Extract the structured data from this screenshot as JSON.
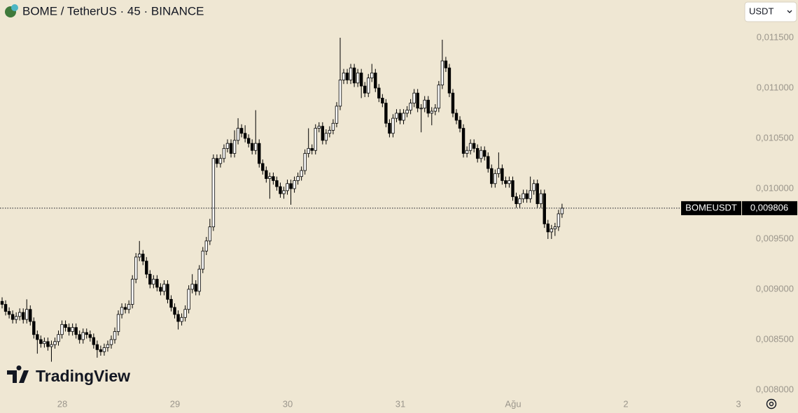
{
  "chart_data": {
    "type": "candlestick",
    "title": "BOME / TetherUS · 45 · BINANCE",
    "currency": "USDT",
    "symbol": "BOMEUSDT",
    "last_price": {
      "value": 0.009806,
      "label": "0,009806"
    },
    "watermark": "TradingView",
    "up_color": "#ffffff",
    "down_color": "#000000",
    "grid": false,
    "xlim": [
      -0.6,
      210.1
    ],
    "xticks": [
      {
        "value": 17.1,
        "label": "28"
      },
      {
        "value": 49.1,
        "label": "29"
      },
      {
        "value": 81.1,
        "label": "30"
      },
      {
        "value": 113.1,
        "label": "31"
      },
      {
        "value": 145.1,
        "label": "Ağu"
      },
      {
        "value": 177.1,
        "label": "2"
      },
      {
        "value": 209.1,
        "label": "3"
      }
    ],
    "ylim": [
      0.00793,
      0.011875
    ],
    "yticks": [
      {
        "value": 0.0115,
        "label": "0,011500"
      },
      {
        "value": 0.011,
        "label": "0,011000"
      },
      {
        "value": 0.0105,
        "label": "0,010500"
      },
      {
        "value": 0.01,
        "label": "0,010000"
      },
      {
        "value": 0.0095,
        "label": "0,009500"
      },
      {
        "value": 0.009,
        "label": "0,009000"
      },
      {
        "value": 0.0085,
        "label": "0,008500"
      },
      {
        "value": 0.008,
        "label": "0,008000"
      }
    ],
    "open": [
      0.00888,
      0.00885,
      0.00878,
      0.00875,
      0.0087,
      0.00873,
      0.00877,
      0.0087,
      0.0088,
      0.00868,
      0.00855,
      0.0085,
      0.00846,
      0.00848,
      0.00843,
      0.00845,
      0.00848,
      0.00855,
      0.00865,
      0.00862,
      0.00858,
      0.00862,
      0.00855,
      0.0085,
      0.00857,
      0.00855,
      0.00852,
      0.00845,
      0.0084,
      0.00838,
      0.00842,
      0.00845,
      0.0085,
      0.00858,
      0.00875,
      0.00882,
      0.0088,
      0.00885,
      0.0091,
      0.00932,
      0.00935,
      0.00928,
      0.00915,
      0.00905,
      0.0091,
      0.00902,
      0.00898,
      0.00905,
      0.0089,
      0.00882,
      0.00875,
      0.00868,
      0.00872,
      0.0088,
      0.009,
      0.00905,
      0.00898,
      0.0092,
      0.00938,
      0.00948,
      0.00962,
      0.0103,
      0.01025,
      0.0103,
      0.0104,
      0.01045,
      0.01035,
      0.01048,
      0.0106,
      0.01055,
      0.0105,
      0.01045,
      0.01038,
      0.01045,
      0.01025,
      0.01018,
      0.0101,
      0.01012,
      0.01008,
      0.01002,
      0.00995,
      0.00998,
      0.01005,
      0.01,
      0.01008,
      0.01012,
      0.01018,
      0.01035,
      0.0104,
      0.01038,
      0.0106,
      0.01062,
      0.01048,
      0.01055,
      0.01058,
      0.01065,
      0.01082,
      0.01108,
      0.01115,
      0.01108,
      0.0112,
      0.01105,
      0.01115,
      0.01102,
      0.01095,
      0.0111,
      0.01115,
      0.011,
      0.0109,
      0.01085,
      0.01065,
      0.01055,
      0.0107,
      0.01075,
      0.01068,
      0.01075,
      0.01078,
      0.01085,
      0.01095,
      0.0108,
      0.0108,
      0.01088,
      0.01075,
      0.01077,
      0.0108,
      0.01103,
      0.01127,
      0.0112,
      0.01095,
      0.01075,
      0.01068,
      0.0106,
      0.01035,
      0.01038,
      0.01045,
      0.0104,
      0.0103,
      0.01038,
      0.01032,
      0.0102,
      0.01005,
      0.01015,
      0.0102,
      0.01008,
      0.01005,
      0.01008,
      0.00992,
      0.00985,
      0.0099,
      0.00995,
      0.0099,
      0.00998,
      0.01005,
      0.00985,
      0.00995,
      0.00965,
      0.00957,
      0.0096,
      0.00962,
      0.00975
    ],
    "high": [
      0.00892,
      0.00889,
      0.00882,
      0.00879,
      0.00877,
      0.00881,
      0.00881,
      0.0089,
      0.00884,
      0.00872,
      0.00859,
      0.00854,
      0.00852,
      0.00852,
      0.00849,
      0.00852,
      0.00859,
      0.00869,
      0.00869,
      0.00866,
      0.00866,
      0.00866,
      0.00859,
      0.00861,
      0.00861,
      0.00859,
      0.00856,
      0.00849,
      0.00844,
      0.00846,
      0.00849,
      0.00854,
      0.00862,
      0.00879,
      0.00886,
      0.00886,
      0.00889,
      0.00914,
      0.00936,
      0.00948,
      0.00939,
      0.00932,
      0.00919,
      0.00914,
      0.00914,
      0.00906,
      0.00909,
      0.00909,
      0.00894,
      0.00886,
      0.00879,
      0.00876,
      0.00884,
      0.00904,
      0.00915,
      0.00909,
      0.00924,
      0.00942,
      0.00952,
      0.0097,
      0.01034,
      0.01034,
      0.01034,
      0.01044,
      0.01049,
      0.01049,
      0.01058,
      0.0107,
      0.01064,
      0.01063,
      0.01054,
      0.01049,
      0.01078,
      0.01049,
      0.01029,
      0.01022,
      0.01016,
      0.01016,
      0.01012,
      0.01006,
      0.01002,
      0.01009,
      0.01009,
      0.01012,
      0.01016,
      0.01022,
      0.01039,
      0.0106,
      0.01044,
      0.01064,
      0.01066,
      0.01066,
      0.01059,
      0.01062,
      0.01069,
      0.01086,
      0.0115,
      0.01119,
      0.01119,
      0.01124,
      0.01124,
      0.01119,
      0.01119,
      0.01106,
      0.01114,
      0.01124,
      0.01119,
      0.01104,
      0.01094,
      0.01089,
      0.01069,
      0.01074,
      0.01079,
      0.01079,
      0.01079,
      0.01082,
      0.01089,
      0.01099,
      0.01099,
      0.01084,
      0.01092,
      0.01092,
      0.01081,
      0.01084,
      0.01107,
      0.01148,
      0.01131,
      0.01124,
      0.01099,
      0.01079,
      0.01072,
      0.01064,
      0.01042,
      0.01049,
      0.01049,
      0.01044,
      0.01042,
      0.01042,
      0.01036,
      0.01024,
      0.01019,
      0.01036,
      0.01024,
      0.01012,
      0.01012,
      0.01012,
      0.00996,
      0.00994,
      0.00999,
      0.00999,
      0.01012,
      0.01009,
      0.01009,
      0.00999,
      0.00999,
      0.00969,
      0.00964,
      0.00966,
      0.00979,
      0.00985
    ],
    "low": [
      0.00881,
      0.00874,
      0.00871,
      0.00866,
      0.00866,
      0.00869,
      0.00866,
      0.00866,
      0.00864,
      0.00851,
      0.00836,
      0.00842,
      0.00842,
      0.00839,
      0.00828,
      0.00841,
      0.00844,
      0.00851,
      0.00858,
      0.00854,
      0.00854,
      0.00851,
      0.00846,
      0.00846,
      0.00851,
      0.00848,
      0.00841,
      0.00832,
      0.00834,
      0.00834,
      0.00838,
      0.00841,
      0.00846,
      0.00854,
      0.00871,
      0.00876,
      0.00876,
      0.00881,
      0.00906,
      0.00928,
      0.00924,
      0.00911,
      0.00901,
      0.00901,
      0.00898,
      0.00894,
      0.00894,
      0.00886,
      0.00878,
      0.00871,
      0.0086,
      0.00864,
      0.00868,
      0.00876,
      0.00896,
      0.00894,
      0.00894,
      0.00916,
      0.00934,
      0.00944,
      0.00958,
      0.01021,
      0.01021,
      0.01026,
      0.01036,
      0.01031,
      0.01031,
      0.01044,
      0.01051,
      0.01046,
      0.01041,
      0.01034,
      0.01034,
      0.01021,
      0.01014,
      0.01006,
      0.0099,
      0.01004,
      0.00998,
      0.00991,
      0.0099,
      0.00994,
      0.00984,
      0.00996,
      0.01004,
      0.01008,
      0.01014,
      0.01031,
      0.01034,
      0.01034,
      0.01056,
      0.01044,
      0.01044,
      0.01051,
      0.01054,
      0.01061,
      0.01078,
      0.01104,
      0.01104,
      0.01104,
      0.01101,
      0.01101,
      0.0109,
      0.01091,
      0.01091,
      0.01106,
      0.01096,
      0.01086,
      0.01081,
      0.01061,
      0.01051,
      0.01051,
      0.01066,
      0.01064,
      0.01064,
      0.01071,
      0.01074,
      0.01081,
      0.01076,
      0.01056,
      0.01076,
      0.01071,
      0.01063,
      0.01073,
      0.01076,
      0.01099,
      0.01116,
      0.01091,
      0.01071,
      0.01064,
      0.01056,
      0.01031,
      0.01031,
      0.01034,
      0.01036,
      0.01026,
      0.01026,
      0.01028,
      0.01016,
      0.01001,
      0.01001,
      0.01011,
      0.01004,
      0.01001,
      0.01001,
      0.00988,
      0.00981,
      0.00981,
      0.00986,
      0.00986,
      0.00986,
      0.00994,
      0.00981,
      0.00981,
      0.00961,
      0.0095,
      0.0095,
      0.00953,
      0.00958,
      0.00971
    ],
    "close": [
      0.00885,
      0.00878,
      0.00875,
      0.0087,
      0.00873,
      0.00877,
      0.0087,
      0.0088,
      0.00868,
      0.00855,
      0.0085,
      0.00846,
      0.00848,
      0.00843,
      0.00845,
      0.00848,
      0.00855,
      0.00865,
      0.00862,
      0.00858,
      0.00862,
      0.00855,
      0.0085,
      0.00857,
      0.00855,
      0.00852,
      0.00845,
      0.0084,
      0.00838,
      0.00842,
      0.00845,
      0.0085,
      0.00858,
      0.00875,
      0.00882,
      0.0088,
      0.00885,
      0.0091,
      0.00932,
      0.00935,
      0.00928,
      0.00915,
      0.00905,
      0.0091,
      0.00902,
      0.00898,
      0.00905,
      0.0089,
      0.00882,
      0.00875,
      0.00868,
      0.00872,
      0.0088,
      0.009,
      0.00905,
      0.00898,
      0.0092,
      0.00938,
      0.00948,
      0.00962,
      0.0103,
      0.01025,
      0.0103,
      0.0104,
      0.01045,
      0.01035,
      0.01048,
      0.0106,
      0.01055,
      0.0105,
      0.01045,
      0.01038,
      0.01045,
      0.01025,
      0.01018,
      0.0101,
      0.01012,
      0.01008,
      0.01002,
      0.00995,
      0.00998,
      0.01005,
      0.01,
      0.01008,
      0.01012,
      0.01018,
      0.01035,
      0.0104,
      0.01038,
      0.0106,
      0.01062,
      0.01048,
      0.01055,
      0.01058,
      0.01065,
      0.01082,
      0.01108,
      0.01115,
      0.01108,
      0.0112,
      0.01105,
      0.01115,
      0.01102,
      0.01095,
      0.0111,
      0.01115,
      0.011,
      0.0109,
      0.01085,
      0.01065,
      0.01055,
      0.0107,
      0.01075,
      0.01068,
      0.01075,
      0.01078,
      0.01085,
      0.01095,
      0.0108,
      0.0108,
      0.01088,
      0.01075,
      0.01077,
      0.0108,
      0.01103,
      0.01127,
      0.0112,
      0.01095,
      0.01075,
      0.01068,
      0.0106,
      0.01035,
      0.01038,
      0.01045,
      0.0104,
      0.0103,
      0.01038,
      0.01032,
      0.0102,
      0.01005,
      0.01015,
      0.0102,
      0.01008,
      0.01005,
      0.01008,
      0.00992,
      0.00985,
      0.0099,
      0.00995,
      0.0099,
      0.00998,
      0.01005,
      0.00985,
      0.00995,
      0.00965,
      0.00957,
      0.0096,
      0.00962,
      0.00975,
      0.009806
    ]
  }
}
